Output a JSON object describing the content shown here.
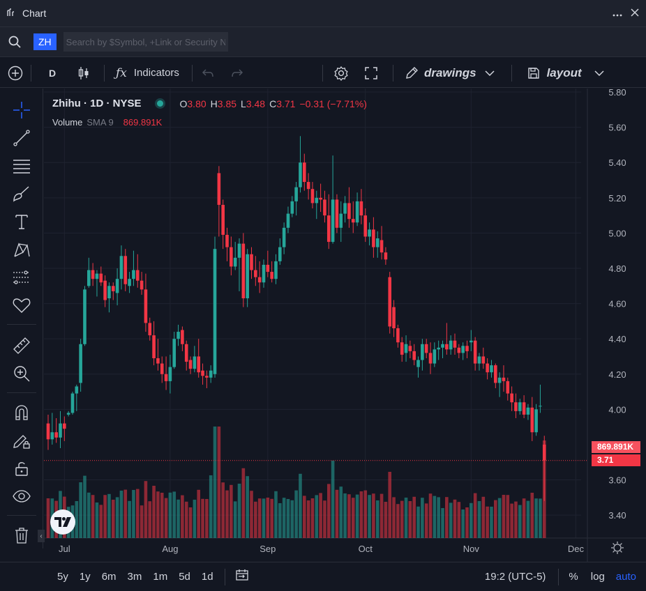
{
  "window": {
    "title": "Chart"
  },
  "search": {
    "ticker": "ZH",
    "placeholder": "Search by $Symbol, +Link or Security Name"
  },
  "toolbar": {
    "interval": "D",
    "indicators_label": "Indicators",
    "drawings_label": "drawings",
    "layout_label": "layout"
  },
  "legend": {
    "symbol": "Zhihu · 1D · NYSE",
    "o_label": "O",
    "o": "3.80",
    "h_label": "H",
    "h": "3.85",
    "l_label": "L",
    "l": "3.48",
    "c_label": "C",
    "c": "3.71",
    "change": "−0.31 (−7.71%)",
    "volume_label": "Volume",
    "sma_label": "SMA 9",
    "volume_value": "869.891K"
  },
  "price_axis": {
    "ticks": [
      "5.80",
      "5.60",
      "5.40",
      "5.20",
      "5.00",
      "4.80",
      "4.60",
      "4.40",
      "4.20",
      "4.00",
      "3.60",
      "3.40"
    ]
  },
  "time_axis": {
    "ticks": [
      "Jul",
      "Aug",
      "Sep",
      "Oct",
      "Nov",
      "Dec"
    ]
  },
  "tags": {
    "volume": "869.891K",
    "price": "3.71"
  },
  "ranges": [
    "5y",
    "1y",
    "6m",
    "3m",
    "1m",
    "5d",
    "1d"
  ],
  "status": {
    "time": "19:2 (UTC-5)",
    "percent": "%",
    "log": "log",
    "auto": "auto"
  },
  "colors": {
    "up": "#26a69a",
    "down": "#f23645",
    "background": "#131722",
    "accent": "#2962ff"
  },
  "chart_data": {
    "type": "candlestick",
    "y_range": [
      3.27,
      5.82
    ],
    "candles": [
      [
        3.92,
        3.97,
        3.77,
        3.83
      ],
      [
        3.83,
        3.98,
        3.8,
        3.87
      ],
      [
        3.87,
        3.95,
        3.81,
        3.84
      ],
      [
        3.84,
        3.99,
        3.78,
        3.92
      ],
      [
        3.92,
        3.96,
        3.82,
        3.89
      ],
      [
        3.97,
        3.99,
        3.96,
        3.98
      ],
      [
        3.98,
        4.1,
        3.97,
        4.09
      ],
      [
        4.09,
        4.14,
        3.99,
        4.13
      ],
      [
        4.15,
        4.4,
        4.1,
        4.37
      ],
      [
        4.37,
        4.7,
        4.36,
        4.68
      ],
      [
        4.7,
        4.86,
        4.69,
        4.79
      ],
      [
        4.79,
        4.83,
        4.7,
        4.74
      ],
      [
        4.74,
        4.79,
        4.64,
        4.77
      ],
      [
        4.77,
        4.81,
        4.7,
        4.72
      ],
      [
        4.73,
        4.76,
        4.58,
        4.62
      ],
      [
        4.63,
        4.72,
        4.55,
        4.7
      ],
      [
        4.7,
        4.72,
        4.62,
        4.67
      ],
      [
        4.66,
        4.8,
        4.59,
        4.74
      ],
      [
        4.74,
        4.93,
        4.68,
        4.87
      ],
      [
        4.87,
        4.91,
        4.67,
        4.71
      ],
      [
        4.7,
        4.78,
        4.66,
        4.74
      ],
      [
        4.74,
        4.9,
        4.7,
        4.79
      ],
      [
        4.79,
        4.88,
        4.69,
        4.73
      ],
      [
        4.73,
        4.78,
        4.65,
        4.68
      ],
      [
        4.68,
        4.77,
        4.44,
        4.49
      ],
      [
        4.49,
        4.52,
        4.39,
        4.42
      ],
      [
        4.42,
        4.5,
        4.25,
        4.29
      ],
      [
        4.29,
        4.4,
        4.22,
        4.26
      ],
      [
        4.26,
        4.3,
        4.15,
        4.2
      ],
      [
        4.2,
        4.3,
        4.11,
        4.16
      ],
      [
        4.16,
        4.31,
        4.09,
        4.24
      ],
      [
        4.24,
        4.44,
        4.23,
        4.4
      ],
      [
        4.4,
        4.48,
        4.36,
        4.44
      ],
      [
        4.45,
        4.47,
        4.33,
        4.37
      ],
      [
        4.37,
        4.39,
        4.22,
        4.27
      ],
      [
        4.28,
        4.3,
        4.2,
        4.23
      ],
      [
        4.23,
        4.36,
        4.21,
        4.3
      ],
      [
        4.3,
        4.4,
        4.18,
        4.21
      ],
      [
        4.22,
        4.26,
        4.14,
        4.19
      ],
      [
        4.19,
        4.22,
        4.12,
        4.18
      ],
      [
        4.18,
        4.25,
        4.15,
        4.22
      ],
      [
        4.2,
        4.98,
        4.18,
        4.91
      ],
      [
        5.34,
        5.38,
        4.98,
        5.16
      ],
      [
        5.16,
        5.19,
        4.91,
        4.99
      ],
      [
        4.99,
        5.03,
        4.84,
        4.92
      ],
      [
        4.92,
        4.98,
        4.76,
        4.81
      ],
      [
        4.81,
        4.95,
        4.79,
        4.86
      ],
      [
        4.86,
        4.97,
        4.67,
        4.94
      ],
      [
        4.94,
        5.0,
        4.58,
        4.63
      ],
      [
        4.63,
        4.91,
        4.58,
        4.88
      ],
      [
        4.88,
        4.92,
        4.74,
        4.79
      ],
      [
        4.79,
        4.87,
        4.7,
        4.75
      ],
      [
        4.75,
        4.84,
        4.66,
        4.72
      ],
      [
        4.72,
        4.85,
        4.69,
        4.82
      ],
      [
        4.82,
        4.9,
        4.75,
        4.78
      ],
      [
        4.78,
        4.84,
        4.72,
        4.74
      ],
      [
        4.74,
        4.88,
        4.71,
        4.84
      ],
      [
        4.84,
        4.97,
        4.82,
        4.92
      ],
      [
        4.92,
        5.06,
        4.88,
        5.03
      ],
      [
        5.03,
        5.15,
        5.0,
        5.11
      ],
      [
        5.11,
        5.21,
        5.09,
        5.18
      ],
      [
        5.18,
        5.29,
        5.1,
        5.26
      ],
      [
        5.26,
        5.55,
        5.23,
        5.4
      ],
      [
        5.4,
        5.45,
        5.24,
        5.29
      ],
      [
        5.29,
        5.34,
        5.19,
        5.25
      ],
      [
        5.25,
        5.29,
        5.14,
        5.17
      ],
      [
        5.17,
        5.24,
        5.08,
        5.2
      ],
      [
        5.2,
        5.28,
        5.12,
        5.19
      ],
      [
        5.19,
        5.24,
        5.06,
        5.1
      ],
      [
        5.1,
        5.22,
        4.91,
        4.95
      ],
      [
        4.95,
        5.44,
        4.94,
        5.19
      ],
      [
        5.19,
        5.22,
        5.0,
        5.03
      ],
      [
        5.03,
        5.18,
        4.95,
        5.11
      ],
      [
        5.11,
        5.21,
        5.06,
        5.17
      ],
      [
        5.17,
        5.26,
        5.03,
        5.08
      ],
      [
        5.08,
        5.18,
        5.0,
        5.06
      ],
      [
        5.06,
        5.23,
        5.04,
        5.18
      ],
      [
        5.18,
        5.25,
        5.05,
        5.1
      ],
      [
        5.1,
        5.14,
        4.95,
        4.98
      ],
      [
        4.98,
        5.06,
        4.93,
        5.02
      ],
      [
        5.02,
        5.09,
        4.86,
        4.92
      ],
      [
        4.92,
        5.01,
        4.86,
        4.97
      ],
      [
        4.96,
        5.04,
        4.85,
        4.89
      ],
      [
        4.89,
        4.92,
        4.82,
        4.85
      ],
      [
        4.75,
        4.78,
        4.43,
        4.47
      ],
      [
        4.58,
        4.62,
        4.41,
        4.46
      ],
      [
        4.46,
        4.48,
        4.35,
        4.38
      ],
      [
        4.38,
        4.41,
        4.27,
        4.31
      ],
      [
        4.32,
        4.42,
        4.27,
        4.37
      ],
      [
        4.36,
        4.39,
        4.29,
        4.33
      ],
      [
        4.33,
        4.37,
        4.25,
        4.28
      ],
      [
        4.24,
        4.3,
        4.18,
        4.28
      ],
      [
        4.28,
        4.4,
        4.22,
        4.37
      ],
      [
        4.37,
        4.4,
        4.29,
        4.32
      ],
      [
        4.32,
        4.38,
        4.2,
        4.26
      ],
      [
        4.26,
        4.38,
        4.24,
        4.34
      ],
      [
        4.34,
        4.39,
        4.28,
        4.35
      ],
      [
        4.35,
        4.39,
        4.29,
        4.37
      ],
      [
        4.37,
        4.49,
        4.31,
        4.34
      ],
      [
        4.34,
        4.42,
        4.31,
        4.39
      ],
      [
        4.39,
        4.43,
        4.31,
        4.35
      ],
      [
        4.35,
        4.37,
        4.29,
        4.32
      ],
      [
        4.32,
        4.38,
        4.28,
        4.36
      ],
      [
        4.36,
        4.39,
        4.29,
        4.33
      ],
      [
        4.38,
        4.45,
        4.33,
        4.39
      ],
      [
        4.39,
        4.41,
        4.22,
        4.26
      ],
      [
        4.26,
        4.32,
        4.22,
        4.3
      ],
      [
        4.3,
        4.35,
        4.23,
        4.26
      ],
      [
        4.26,
        4.29,
        4.17,
        4.21
      ],
      [
        4.21,
        4.28,
        4.18,
        4.25
      ],
      [
        4.25,
        4.26,
        4.12,
        4.15
      ],
      [
        4.15,
        4.21,
        4.07,
        4.18
      ],
      [
        4.18,
        4.25,
        4.1,
        4.16
      ],
      [
        4.16,
        4.18,
        4.05,
        4.09
      ],
      [
        4.09,
        4.13,
        3.99,
        4.04
      ],
      [
        4.04,
        4.09,
        3.95,
        3.99
      ],
      [
        3.99,
        4.06,
        3.97,
        4.04
      ],
      [
        4.04,
        4.08,
        3.95,
        3.97
      ],
      [
        3.97,
        4.03,
        3.94,
        4.01
      ],
      [
        4.01,
        4.07,
        3.82,
        3.87
      ],
      [
        3.87,
        4.03,
        3.85,
        4.0
      ],
      [
        4.02,
        4.14,
        3.98,
        4.02
      ],
      [
        3.8,
        3.85,
        3.48,
        3.71
      ]
    ],
    "volume_label": "Volume",
    "volume_sma_label": "SMA 9",
    "last_volume": "869.891K",
    "last_price": 3.71
  }
}
